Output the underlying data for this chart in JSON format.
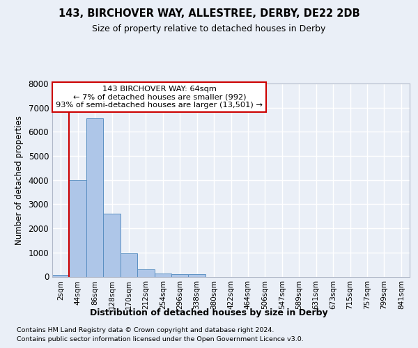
{
  "title1": "143, BIRCHOVER WAY, ALLESTREE, DERBY, DE22 2DB",
  "title2": "Size of property relative to detached houses in Derby",
  "xlabel": "Distribution of detached houses by size in Derby",
  "ylabel": "Number of detached properties",
  "footnote1": "Contains HM Land Registry data © Crown copyright and database right 2024.",
  "footnote2": "Contains public sector information licensed under the Open Government Licence v3.0.",
  "annotation_title": "143 BIRCHOVER WAY: 64sqm",
  "annotation_line1": "← 7% of detached houses are smaller (992)",
  "annotation_line2": "93% of semi-detached houses are larger (13,501) →",
  "bar_categories": [
    "2sqm",
    "44sqm",
    "86sqm",
    "128sqm",
    "170sqm",
    "212sqm",
    "254sqm",
    "296sqm",
    "338sqm",
    "380sqm",
    "422sqm",
    "464sqm",
    "506sqm",
    "547sqm",
    "589sqm",
    "631sqm",
    "673sqm",
    "715sqm",
    "757sqm",
    "799sqm",
    "841sqm"
  ],
  "bar_values": [
    80,
    3980,
    6550,
    2620,
    960,
    310,
    130,
    110,
    90,
    0,
    0,
    0,
    0,
    0,
    0,
    0,
    0,
    0,
    0,
    0,
    0
  ],
  "bar_color": "#aec6e8",
  "bar_edge_color": "#5a8fc2",
  "redline_x": 0.5,
  "redline_color": "#cc0000",
  "ylim": [
    0,
    8000
  ],
  "yticks": [
    0,
    1000,
    2000,
    3000,
    4000,
    5000,
    6000,
    7000,
    8000
  ],
  "bg_color": "#eaeff7",
  "grid_color": "#ffffff",
  "annotation_box_color": "#ffffff",
  "annotation_box_edge": "#cc0000"
}
